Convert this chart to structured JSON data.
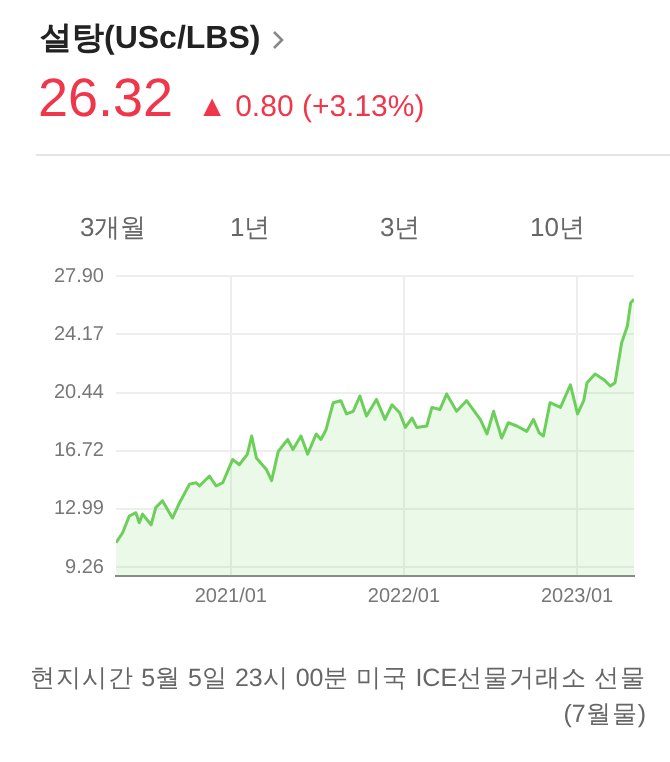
{
  "chart_data": {
    "type": "area",
    "title": "설탕(USc/LBS)",
    "subtitle": "26.32 ▲ 0.80 (+3.13%)",
    "annotations": [
      "3개월",
      "1년",
      "3년",
      "10년",
      "현지시간 5월 5일 23시 00분 미국 ICE선물거래소 선물(7월물)"
    ],
    "x": [
      "2020-05-04",
      "2020-05-18",
      "2020-06-01",
      "2020-06-15",
      "2020-06-22",
      "2020-06-29",
      "2020-07-17",
      "2020-07-27",
      "2020-08-10",
      "2020-08-31",
      "2020-09-15",
      "2020-10-06",
      "2020-10-20",
      "2020-10-27",
      "2020-11-17",
      "2020-12-01",
      "2020-12-15",
      "2021-01-05",
      "2021-01-19",
      "2021-02-05",
      "2021-02-14",
      "2021-02-24",
      "2021-03-17",
      "2021-03-28",
      "2021-04-11",
      "2021-05-01",
      "2021-05-12",
      "2021-05-29",
      "2021-06-12",
      "2021-06-30",
      "2021-07-10",
      "2021-07-21",
      "2021-08-05",
      "2021-08-21",
      "2021-09-02",
      "2021-09-16",
      "2021-09-30",
      "2021-10-14",
      "2021-11-04",
      "2021-11-22",
      "2021-12-07",
      "2021-12-23",
      "2022-01-04",
      "2022-01-18",
      "2022-01-28",
      "2022-02-18",
      "2022-03-01",
      "2022-03-18",
      "2022-04-01",
      "2022-04-22",
      "2022-05-13",
      "2022-06-11",
      "2022-06-25",
      "2022-07-09",
      "2022-07-26",
      "2022-08-09",
      "2022-08-27",
      "2022-09-17",
      "2022-10-01",
      "2022-10-13",
      "2022-10-22",
      "2022-11-05",
      "2022-11-27",
      "2022-12-18",
      "2023-01-02",
      "2023-01-15",
      "2023-01-22",
      "2023-02-08",
      "2023-02-26",
      "2023-03-12",
      "2023-03-22",
      "2023-04-05",
      "2023-04-17",
      "2023-04-24",
      "2023-05-01"
    ],
    "series": [
      {
        "color": "#6ccf5a",
        "values": [
          10.83,
          11.47,
          12.54,
          12.75,
          12.11,
          12.66,
          11.98,
          13.09,
          13.52,
          12.41,
          13.39,
          14.58,
          14.67,
          14.46,
          15.1,
          14.46,
          14.67,
          16.16,
          15.82,
          16.5,
          17.66,
          16.25,
          15.52,
          14.8,
          16.67,
          17.44,
          16.8,
          17.66,
          16.5,
          17.79,
          17.44,
          18.08,
          19.79,
          19.92,
          19.07,
          19.24,
          20.22,
          18.94,
          20.0,
          18.72,
          19.66,
          19.15,
          18.21,
          18.81,
          18.21,
          18.3,
          19.49,
          19.36,
          20.35,
          19.24,
          19.92,
          18.72,
          17.79,
          19.24,
          17.53,
          18.51,
          18.3,
          17.96,
          18.72,
          17.87,
          17.66,
          19.79,
          19.49,
          20.94,
          19.07,
          19.92,
          21.07,
          21.63,
          21.28,
          20.86,
          21.07,
          23.63,
          24.7,
          26.19,
          26.41
        ]
      }
    ],
    "xlim": [
      "2020-05-04",
      "2023-05-01"
    ],
    "xticks": [
      {
        "value": "2021-01-01",
        "label": "2021/01"
      },
      {
        "value": "2022-01-01",
        "label": "2022/01"
      },
      {
        "value": "2023-01-01",
        "label": "2023/01"
      }
    ],
    "ylim": [
      8.7,
      27.9
    ],
    "yticks": [
      9.26,
      12.99,
      16.72,
      20.44,
      24.17,
      {
        "value": 27.9,
        "label": "27.90"
      }
    ],
    "grid": true,
    "legend": false,
    "marker": "none",
    "line_style": "solid"
  }
}
